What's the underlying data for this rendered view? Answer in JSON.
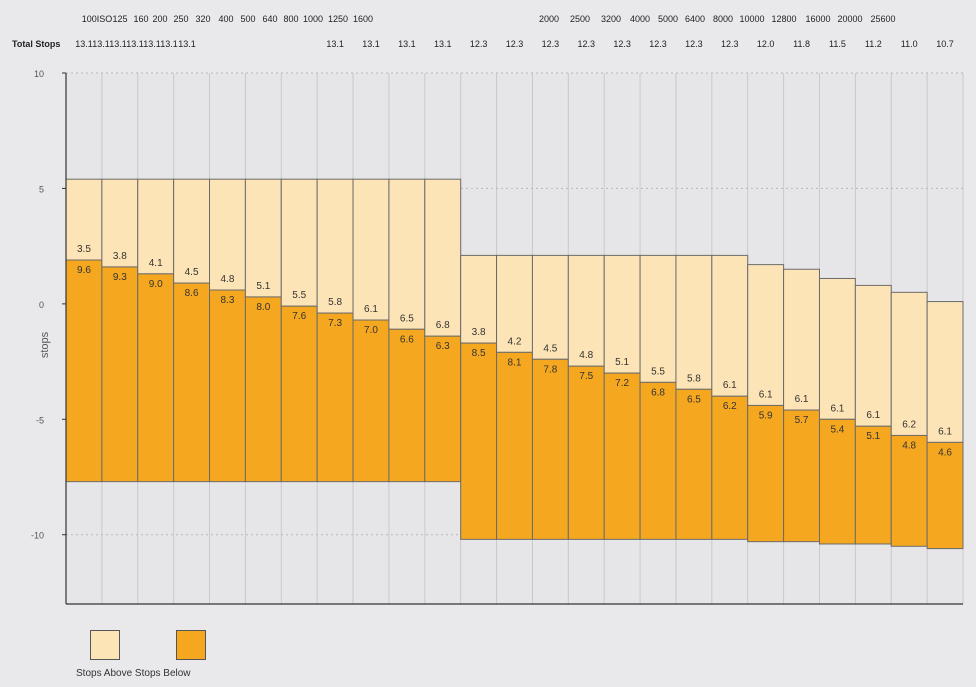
{
  "chart_data": {
    "type": "bar",
    "iso_row": [
      "100ISO",
      "125",
      "160",
      "200",
      "250",
      "320",
      "400",
      "500",
      "640",
      "800",
      "1000",
      "1250",
      "1600",
      "2000",
      "2500",
      "3200",
      "4000",
      "5000",
      "6400",
      "8000",
      "10000",
      "12800",
      "16000",
      "20000",
      "25600"
    ],
    "total_stops_label": "Total Stops",
    "total_stops_row": [
      "13.1",
      "13.1",
      "13.1",
      "13.1",
      "13.1",
      "13.1",
      "13.1",
      "13.1",
      "13.1",
      "13.1",
      "13.1",
      "12.3",
      "12.3",
      "12.3",
      "12.3",
      "12.3",
      "12.3",
      "12.3",
      "12.3",
      "12.0",
      "11.8",
      "11.5",
      "11.2",
      "11.0",
      "10.7"
    ],
    "categories": [
      "100ISO",
      "125",
      "160",
      "200",
      "250",
      "320",
      "400",
      "500",
      "640",
      "800",
      "1000",
      "1250",
      "1600",
      "2000",
      "2500",
      "3200",
      "4000",
      "5000",
      "6400",
      "8000",
      "10000",
      "12800",
      "16000",
      "20000",
      "25600"
    ],
    "series": [
      {
        "name": "Stops Above",
        "color": "#fde4b6",
        "values": [
          3.5,
          3.8,
          4.1,
          4.5,
          4.8,
          5.1,
          5.5,
          5.8,
          6.1,
          6.5,
          6.8,
          3.8,
          4.2,
          4.5,
          4.8,
          5.1,
          5.5,
          5.8,
          6.1,
          6.1,
          6.1,
          6.1,
          6.1,
          6.2,
          6.1
        ]
      },
      {
        "name": "Stops Below",
        "color": "#f5a81f",
        "values": [
          9.6,
          9.3,
          9.0,
          8.6,
          8.3,
          8.0,
          7.6,
          7.3,
          7.0,
          6.6,
          6.3,
          8.5,
          8.1,
          7.8,
          7.5,
          7.2,
          6.8,
          6.5,
          6.2,
          5.9,
          5.7,
          5.4,
          5.1,
          4.8,
          4.6
        ]
      }
    ],
    "bar_tops": [
      5.4,
      5.4,
      5.4,
      5.4,
      5.4,
      5.4,
      5.4,
      5.4,
      5.4,
      5.4,
      5.4,
      2.1,
      2.1,
      2.1,
      2.1,
      2.1,
      2.1,
      2.1,
      2.1,
      1.7,
      1.5,
      1.1,
      0.8,
      0.5,
      0.1
    ],
    "ylabel": "stops",
    "ylim": [
      -13,
      10
    ],
    "yticks": [
      10,
      5,
      0,
      -5,
      -10
    ],
    "grid": true,
    "legend_text": "Stops Above Stops Below"
  }
}
